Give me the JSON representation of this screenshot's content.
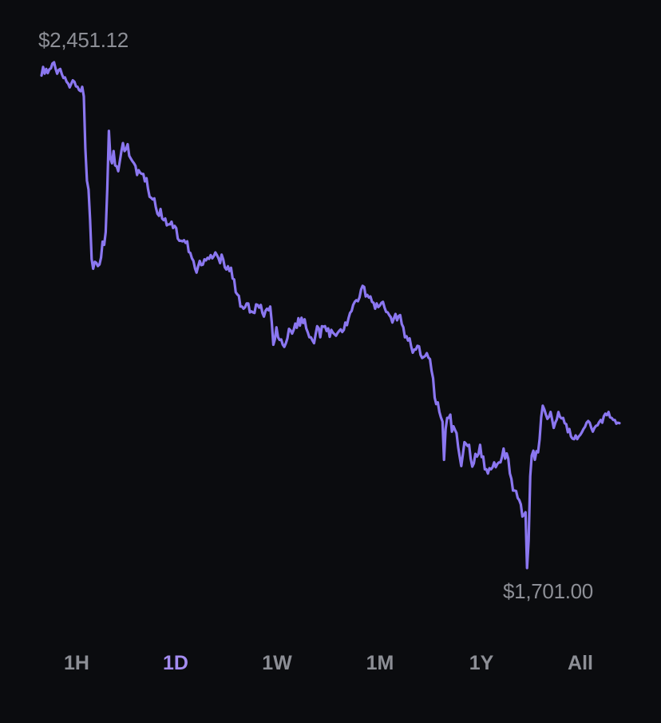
{
  "chart_data": {
    "type": "line",
    "title": "",
    "xlabel": "",
    "ylabel": "",
    "high_label": "$2,451.12",
    "low_label": "$1,701.00",
    "ylim": [
      1701.0,
      2451.12
    ],
    "series": [
      {
        "values": [
          2431.5,
          2444.2,
          2434.3,
          2441.3,
          2435.1,
          2440.6,
          2442.2,
          2449.3,
          2451.1,
          2441.3,
          2434.3,
          2439.9,
          2441.3,
          2433.5,
          2427.9,
          2428.7,
          2422.3,
          2419.5,
          2413.9,
          2419.5,
          2424.3,
          2422.3,
          2415.4,
          2414.7,
          2409.9,
          2408.3,
          2414.7,
          2400.5,
          2323.8,
          2275.6,
          2262.3,
          2219.0,
          2159.2,
          2144.9,
          2155.2,
          2153.6,
          2148.9,
          2151.2,
          2161.5,
          2185.1,
          2180.4,
          2199.3,
          2264.0,
          2349.4,
          2308.5,
          2301.4,
          2319.5,
          2298.2,
          2296.7,
          2289.6,
          2304.5,
          2319.5,
          2331.3,
          2319.5,
          2322.6,
          2329.7,
          2312.4,
          2308.5,
          2304.5,
          2301.4,
          2297.4,
          2284.0,
          2291.1,
          2287.2,
          2285.6,
          2285.6,
          2274.6,
          2279.3,
          2263.5,
          2251.7,
          2250.1,
          2247.8,
          2249.3,
          2236.0,
          2226.5,
          2223.4,
          2233.6,
          2219.5,
          2217.1,
          2219.5,
          2209.2,
          2210.8,
          2210.8,
          2214.7,
          2205.3,
          2208.4,
          2205.3,
          2189.6,
          2186.4,
          2186.4,
          2185.6,
          2187.2,
          2183.3,
          2185.6,
          2169.9,
          2168.3,
          2160.4,
          2156.5,
          2145.5,
          2139.2,
          2148.6,
          2156.5,
          2150.2,
          2151.0,
          2158.9,
          2157.3,
          2161.2,
          2159.6,
          2165.1,
          2160.4,
          2163.6,
          2169.1,
          2165.1,
          2160.4,
          2153.3,
          2165.9,
          2158.9,
          2147.1,
          2143.9,
          2148.6,
          2141.6,
          2146.3,
          2130.6,
          2129.0,
          2110.1,
          2106.9,
          2104.6,
          2088.8,
          2088.8,
          2085.7,
          2088.0,
          2093.5,
          2093.5,
          2080.2,
          2081.7,
          2080.2,
          2079.4,
          2092.0,
          2091.2,
          2087.2,
          2091.2,
          2079.4,
          2073.9,
          2082.5,
          2085.7,
          2083.3,
          2088.8,
          2066.0,
          2032.2,
          2040.0,
          2058.1,
          2043.2,
          2039.3,
          2040.0,
          2032.2,
          2029.0,
          2034.5,
          2041.6,
          2055.8,
          2053.4,
          2048.7,
          2054.2,
          2063.6,
          2057.3,
          2071.5,
          2060.5,
          2072.3,
          2064.4,
          2069.9,
          2056.5,
          2050.3,
          2043.2,
          2043.2,
          2038.5,
          2034.5,
          2047.9,
          2059.7,
          2056.5,
          2043.2,
          2059.7,
          2058.9,
          2059.7,
          2052.6,
          2056.5,
          2044.0,
          2054.2,
          2050.3,
          2047.9,
          2045.5,
          2049.5,
          2052.6,
          2055.0,
          2051.1,
          2054.2,
          2065.2,
          2061.2,
          2071.5,
          2079.4,
          2082.5,
          2091.2,
          2095.9,
          2098.2,
          2096.7,
          2102.2,
          2114.0,
          2119.5,
          2117.9,
          2103.8,
          2106.1,
          2102.2,
          2103.8,
          2095.9,
          2094.3,
          2085.7,
          2093.5,
          2088.0,
          2090.4,
          2094.3,
          2095.9,
          2087.2,
          2080.9,
          2080.2,
          2076.2,
          2073.1,
          2065.2,
          2071.5,
          2077.8,
          2068.4,
          2074.6,
          2076.2,
          2062.8,
          2058.1,
          2043.2,
          2044.8,
          2038.5,
          2041.6,
          2029.8,
          2020.4,
          2025.1,
          2025.1,
          2030.6,
          2029.8,
          2017.2,
          2012.5,
          2014.0,
          2015.6,
          2019.6,
          2013.3,
          2010.9,
          1993.6,
          1982.6,
          1953.6,
          1944.2,
          1946.6,
          1932.4,
          1924.5,
          1918.2,
          1861.6,
          1907.2,
          1923.7,
          1923.7,
          1928.5,
          1903.3,
          1911.2,
          1905.7,
          1901.0,
          1880.5,
          1865.6,
          1852.2,
          1869.5,
          1887.6,
          1885.3,
          1882.1,
          1883.7,
          1863.2,
          1851.4,
          1856.1,
          1870.3,
          1866.3,
          1870.3,
          1883.7,
          1865.6,
          1866.3,
          1847.5,
          1847.5,
          1841.2,
          1849.0,
          1847.5,
          1850.6,
          1857.7,
          1850.6,
          1855.3,
          1857.7,
          1857.7,
          1865.6,
          1878.2,
          1863.2,
          1871.1,
          1863.2,
          1841.2,
          1833.3,
          1816.0,
          1816.0,
          1815.2,
          1804.9,
          1801.8,
          1795.5,
          1777.4,
          1779.7,
          1783.7,
          1701.0,
          1741.9,
          1837.2,
          1867.9,
          1875.0,
          1861.6,
          1874.2,
          1872.6,
          1891.5,
          1924.5,
          1941.8,
          1936.3,
          1928.5,
          1922.2,
          1925.3,
          1932.4,
          1921.4,
          1908.8,
          1916.6,
          1921.4,
          1932.4,
          1925.3,
          1922.9,
          1923.7,
          1915.8,
          1914.3,
          1902.5,
          1907.2,
          1896.2,
          1893.0,
          1892.2,
          1897.7,
          1892.2,
          1896.2,
          1898.5,
          1902.5,
          1907.2,
          1910.4,
          1916.6,
          1919.0,
          1916.6,
          1908.8,
          1903.3,
          1908.8,
          1911.9,
          1912.7,
          1917.4,
          1920.6,
          1916.6,
          1926.1,
          1930.0,
          1927.7,
          1932.4,
          1924.5,
          1923.7,
          1920.6,
          1920.6,
          1915.1,
          1916.6,
          1915.8
        ]
      }
    ],
    "colors": {
      "line": "#8b77f0",
      "label": "#8d8f96",
      "active_tab": "#a48cf0",
      "background": "#0b0c0f"
    }
  },
  "range_selector": {
    "tabs": [
      {
        "label": "1H",
        "active": false
      },
      {
        "label": "1D",
        "active": true
      },
      {
        "label": "1W",
        "active": false
      },
      {
        "label": "1M",
        "active": false
      },
      {
        "label": "1Y",
        "active": false
      },
      {
        "label": "All",
        "active": false
      }
    ]
  }
}
